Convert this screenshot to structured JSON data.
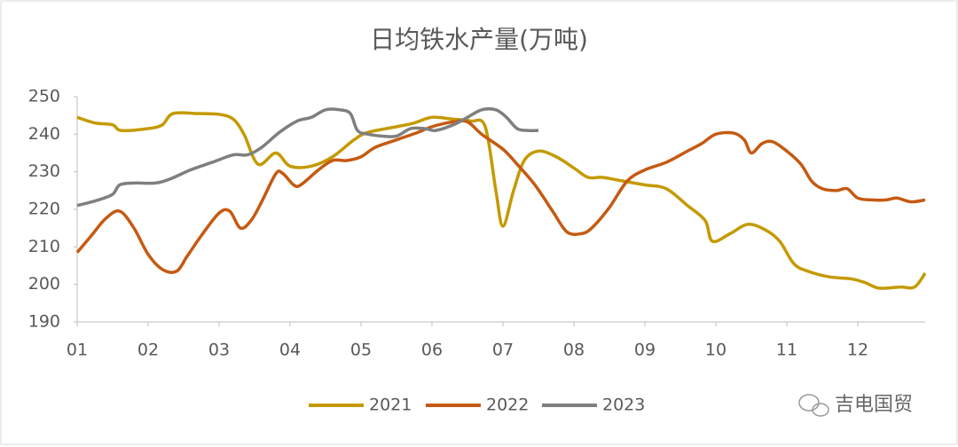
{
  "chart_data": {
    "type": "line",
    "title": "日均铁水产量(万吨)",
    "xlim": [
      1,
      12.95
    ],
    "xticks": [
      {
        "value": 1,
        "label": "01"
      },
      {
        "value": 2,
        "label": "02"
      },
      {
        "value": 3,
        "label": "03"
      },
      {
        "value": 4,
        "label": "04"
      },
      {
        "value": 5,
        "label": "05"
      },
      {
        "value": 6,
        "label": "06"
      },
      {
        "value": 7,
        "label": "07"
      },
      {
        "value": 8,
        "label": "08"
      },
      {
        "value": 9,
        "label": "09"
      },
      {
        "value": 10,
        "label": "10"
      },
      {
        "value": 11,
        "label": "11"
      },
      {
        "value": 12,
        "label": "12"
      }
    ],
    "ylim": [
      190,
      250
    ],
    "yticks": [
      190,
      200,
      210,
      220,
      230,
      240,
      250
    ],
    "grid": false,
    "legend": "bottom",
    "series": [
      {
        "name": "2021",
        "color": "#c49a00",
        "x": [
          1,
          1.25,
          1.5,
          1.62,
          2,
          2.2,
          2.35,
          2.7,
          3.0,
          3.2,
          3.35,
          3.55,
          3.8,
          4.0,
          4.3,
          4.6,
          4.9,
          5.1,
          5.5,
          5.75,
          6.0,
          6.3,
          6.55,
          6.75,
          6.9,
          7.0,
          7.15,
          7.3,
          7.5,
          7.75,
          8.0,
          8.2,
          8.4,
          8.7,
          9.0,
          9.3,
          9.6,
          9.85,
          9.95,
          10.2,
          10.45,
          10.7,
          10.9,
          11.1,
          11.3,
          11.6,
          11.9,
          12.1,
          12.3,
          12.6,
          12.8,
          12.95
        ],
        "values": [
          244.5,
          243,
          242.5,
          241,
          241.5,
          242.5,
          245.5,
          245.5,
          245.3,
          244,
          240,
          232,
          235,
          231.5,
          231.5,
          234,
          238.5,
          240.5,
          242,
          243,
          244.5,
          244,
          243.5,
          242,
          225,
          215.5,
          225,
          233,
          235.5,
          234,
          231,
          228.5,
          228.5,
          227.5,
          226.5,
          225.5,
          221,
          217,
          211.5,
          213.5,
          216,
          214.5,
          211.5,
          205.5,
          203.5,
          202,
          201.5,
          200.5,
          199,
          199.3,
          199.3,
          203
        ]
      },
      {
        "name": "2022",
        "color": "#c55a11",
        "x": [
          1,
          1.2,
          1.4,
          1.6,
          1.8,
          2.0,
          2.2,
          2.4,
          2.55,
          2.75,
          3.0,
          3.15,
          3.3,
          3.45,
          3.6,
          3.8,
          3.9,
          4.05,
          4.15,
          4.4,
          4.6,
          4.8,
          5.0,
          5.2,
          5.5,
          5.8,
          6.0,
          6.3,
          6.5,
          6.7,
          7.0,
          7.2,
          7.45,
          7.7,
          7.9,
          8.1,
          8.25,
          8.5,
          8.75,
          9.0,
          9.3,
          9.6,
          9.8,
          10.0,
          10.25,
          10.4,
          10.5,
          10.65,
          10.8,
          11.0,
          11.2,
          11.35,
          11.5,
          11.7,
          11.85,
          12.0,
          12.2,
          12.4,
          12.55,
          12.75,
          12.95
        ],
        "values": [
          208.5,
          213,
          217.5,
          219.5,
          215,
          208,
          204,
          203.5,
          207.5,
          213,
          219,
          219.5,
          215,
          217,
          222,
          229.5,
          229.5,
          226.5,
          226.5,
          230.5,
          233,
          233,
          234,
          236.5,
          238.5,
          240.5,
          242,
          243.3,
          243.3,
          240,
          236,
          232,
          226.5,
          219.5,
          214,
          213.5,
          215,
          220.5,
          227.5,
          230.5,
          232.5,
          235.5,
          237.5,
          240,
          240.3,
          238.5,
          235,
          237.5,
          238,
          235.5,
          232,
          227.5,
          225.5,
          225,
          225.5,
          223,
          222.5,
          222.5,
          223,
          222,
          222.5
        ]
      },
      {
        "name": "2023",
        "color": "#7f7f7f",
        "x": [
          1,
          1.3,
          1.5,
          1.6,
          1.8,
          2.1,
          2.3,
          2.6,
          2.9,
          3.2,
          3.4,
          3.6,
          3.85,
          4.1,
          4.3,
          4.5,
          4.7,
          4.85,
          4.95,
          5.1,
          5.3,
          5.5,
          5.7,
          5.9,
          6.05,
          6.3,
          6.5,
          6.7,
          6.9,
          7.05,
          7.2,
          7.35,
          7.5
        ],
        "values": [
          221,
          222.5,
          224,
          226.5,
          227,
          227,
          228,
          230.5,
          232.5,
          234.5,
          234.5,
          236.5,
          240.5,
          243.5,
          244.5,
          246.5,
          246.5,
          245.5,
          241,
          240,
          239.5,
          239.5,
          241.5,
          241.5,
          241,
          242.5,
          244.5,
          246.5,
          246.5,
          244.5,
          241.5,
          241,
          241
        ]
      }
    ]
  },
  "watermark": "吉电国贸"
}
